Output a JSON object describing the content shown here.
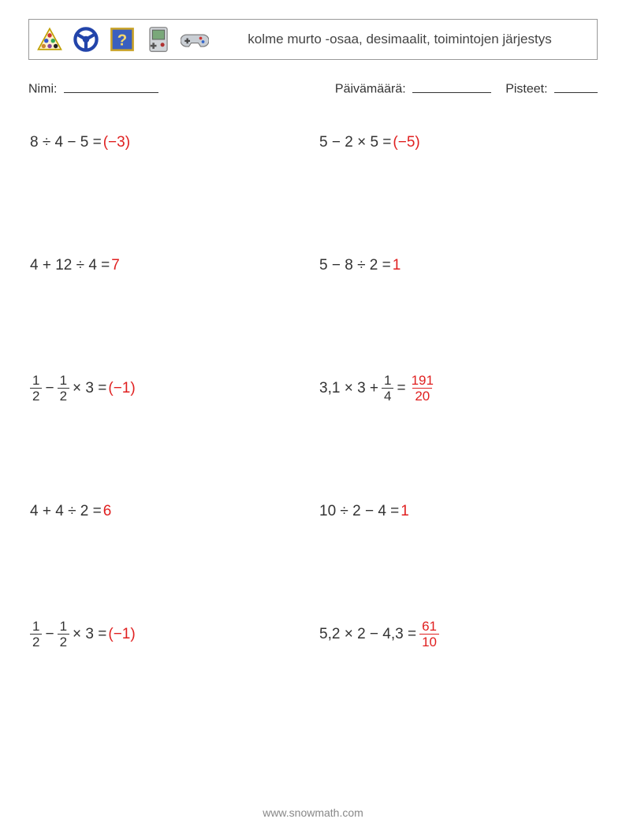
{
  "header": {
    "title": "kolme murto -osaa, desimaalit, toimintojen järjestys",
    "icons": [
      "triangle-balls-icon",
      "steering-wheel-icon",
      "question-box-icon",
      "gameboy-icon",
      "gamepad-icon"
    ]
  },
  "meta": {
    "name_label": "Nimi:",
    "date_label": "Päivämäärä:",
    "score_label": "Pisteet:",
    "name_blank_width": 120,
    "date_blank_width": 100,
    "score_blank_width": 55
  },
  "colors": {
    "answer": "#e02020",
    "text": "#333333",
    "border": "#999999",
    "footer": "#888888"
  },
  "problems": [
    {
      "expr_plain": "8 ÷ 4 − 5 =",
      "answer_plain": "(−3)"
    },
    {
      "expr_plain": "5 − 2 × 5 =",
      "answer_plain": "(−5)"
    },
    {
      "expr_plain": "4 + 12 ÷ 4 =",
      "answer_plain": "7"
    },
    {
      "expr_plain": "5 − 8 ÷ 2 =",
      "answer_plain": "1"
    },
    {
      "expr_tokens": [
        {
          "frac": [
            "1",
            "2"
          ]
        },
        " − ",
        {
          "frac": [
            "1",
            "2"
          ]
        },
        " × 3 = "
      ],
      "answer_plain": "(−1)"
    },
    {
      "expr_tokens": [
        "3,1 × 3 + ",
        {
          "frac": [
            "1",
            "4"
          ]
        },
        " = "
      ],
      "answer_frac": [
        "191",
        "20"
      ]
    },
    {
      "expr_plain": "4 + 4 ÷ 2 =",
      "answer_plain": "6"
    },
    {
      "expr_plain": "10 ÷ 2 − 4 =",
      "answer_plain": "1"
    },
    {
      "expr_tokens": [
        {
          "frac": [
            "1",
            "2"
          ]
        },
        " − ",
        {
          "frac": [
            "1",
            "2"
          ]
        },
        " × 3 = "
      ],
      "answer_plain": "(−1)"
    },
    {
      "expr_tokens": [
        "5,2 × 2 − 4,3 = "
      ],
      "answer_frac": [
        "61",
        "10"
      ]
    }
  ],
  "footer": "www.snowmath.com"
}
